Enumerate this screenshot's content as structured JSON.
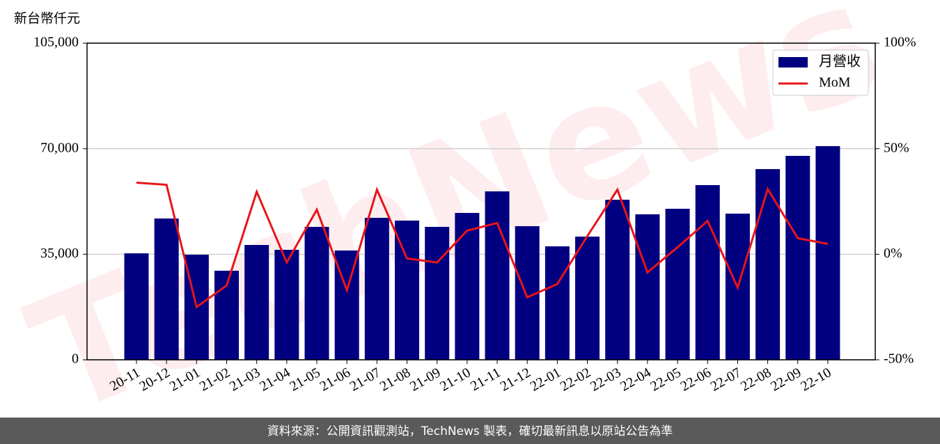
{
  "chart_data": {
    "type": "bar",
    "ylabel": "新台幣仟元",
    "watermark": "TechNews",
    "categories": [
      "20-11",
      "20-12",
      "21-01",
      "21-02",
      "21-03",
      "21-04",
      "21-05",
      "21-06",
      "21-07",
      "21-08",
      "21-09",
      "21-10",
      "21-11",
      "21-12",
      "22-01",
      "22-02",
      "22-03",
      "22-04",
      "22-05",
      "22-06",
      "22-07",
      "22-08",
      "22-09",
      "22-10"
    ],
    "series": [
      {
        "name": "月營收",
        "type": "bar",
        "color": "#000080",
        "values": [
          35300,
          46850,
          34850,
          29540,
          38080,
          36470,
          44080,
          36240,
          47080,
          46160,
          44080,
          48700,
          55850,
          44310,
          37620,
          40850,
          53080,
          48240,
          50080,
          57930,
          48470,
          63240,
          67620,
          70850
        ]
      },
      {
        "name": "MoM",
        "type": "line",
        "axis": "y2",
        "color": "#e8141a",
        "values": [
          33.9,
          32.9,
          -25.0,
          -14.8,
          29.6,
          -3.9,
          21.1,
          -17.1,
          30.6,
          -2.0,
          -3.9,
          11.2,
          14.8,
          -20.4,
          -14.1,
          8.6,
          30.6,
          -8.6,
          3.3,
          15.8,
          -15.8,
          30.9,
          7.6,
          4.9
        ]
      }
    ],
    "ylim": [
      0,
      105000
    ],
    "yticks": [
      {
        "value": 0,
        "label": "0"
      },
      {
        "value": 35000,
        "label": "35,000"
      },
      {
        "value": 70000,
        "label": "70,000"
      },
      {
        "value": 105000,
        "label": "105,000"
      }
    ],
    "y2lim": [
      -50,
      100
    ],
    "y2ticks": [
      {
        "value": -50,
        "label": "-50%"
      },
      {
        "value": 0,
        "label": "0%"
      },
      {
        "value": 50,
        "label": "50%"
      },
      {
        "value": 100,
        "label": "100%"
      }
    ],
    "grid": true,
    "legend": "upper-right"
  },
  "footer": "資料來源：公開資訊觀測站，TechNews 製表，確切最新訊息以原站公告為準"
}
